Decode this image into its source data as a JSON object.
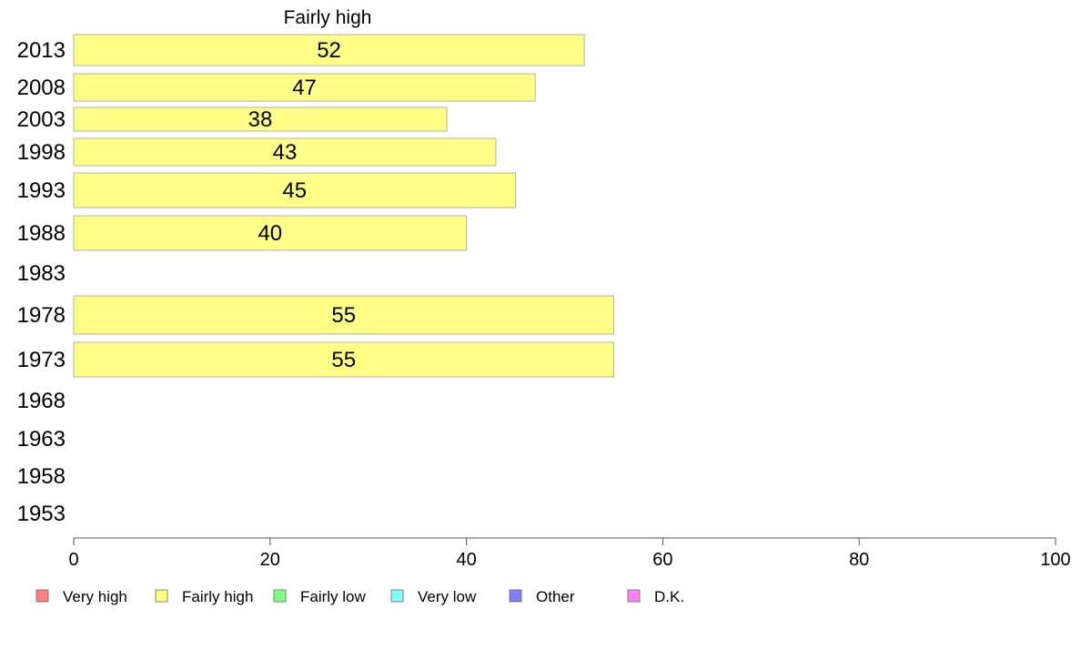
{
  "chart_data": {
    "type": "bar",
    "orientation": "horizontal",
    "title": "Fairly high",
    "categories": [
      "2013",
      "2008",
      "2003",
      "1998",
      "1993",
      "1988",
      "1983",
      "1978",
      "1973",
      "1968",
      "1963",
      "1958",
      "1953"
    ],
    "values": [
      52,
      47,
      38,
      43,
      45,
      40,
      null,
      55,
      55,
      null,
      null,
      null,
      null
    ],
    "data_labels": [
      "52",
      "47",
      "38",
      "43",
      "45",
      "40",
      "",
      "55",
      "55",
      "",
      "",
      "",
      ""
    ],
    "xlim": [
      0,
      100
    ],
    "xticks": [
      0,
      20,
      40,
      60,
      80,
      100
    ],
    "xlabel": "",
    "ylabel": "",
    "grid": false,
    "bar_color": "#ffff88",
    "bar_edge_color": "#b0b0a0",
    "legend_position": "bottom",
    "legend": [
      {
        "label": "Very high",
        "color": "#ff8080"
      },
      {
        "label": "Fairly high",
        "color": "#ffff80"
      },
      {
        "label": "Fairly low",
        "color": "#80ff80"
      },
      {
        "label": "Very low",
        "color": "#80ffff"
      },
      {
        "label": "Other",
        "color": "#8080ff"
      },
      {
        "label": "D.K.",
        "color": "#ff80ff"
      }
    ]
  }
}
